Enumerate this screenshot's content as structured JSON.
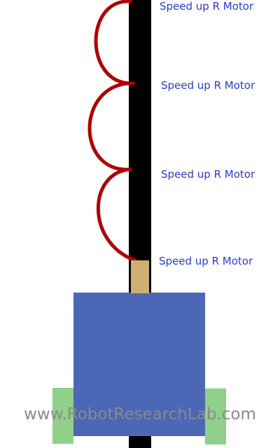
{
  "colors": {
    "background": "#ffffff",
    "line": "#000000",
    "path": "#b00000",
    "label_text": "#2a3ccc",
    "sensor": "#d0b070",
    "robot_body": "#4b67b5",
    "wheel": "#90d08a",
    "watermark": "#8a8a8a"
  },
  "labels": [
    {
      "text": "Speed up R Motor"
    },
    {
      "text": "Speed up R Motor"
    },
    {
      "text": "Speed up R Motor"
    },
    {
      "text": "Speed up R Motor"
    }
  ],
  "watermark": {
    "text": "www.RobotResearchLab.com"
  }
}
